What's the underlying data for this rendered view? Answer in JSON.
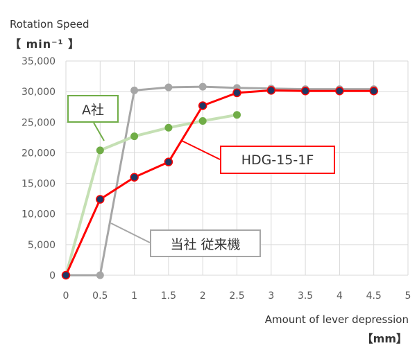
{
  "chart_data": {
    "type": "line",
    "ylabel": "Rotation Speed",
    "yunit": "【 min⁻¹ 】",
    "xlabel": "Amount of lever depression",
    "xunit": "【mm】",
    "xlim": [
      0,
      5
    ],
    "ylim": [
      0,
      35000
    ],
    "x_ticks": [
      "0",
      "0.5",
      "1",
      "1.5",
      "2",
      "2.5",
      "3",
      "3.5",
      "4",
      "4.5",
      "5"
    ],
    "y_ticks": [
      "0",
      "5,000",
      "10,000",
      "15,000",
      "20,000",
      "25,000",
      "30,000",
      "35,000"
    ],
    "grid": true,
    "series": [
      {
        "name": "当社 従来機",
        "color": "#a6a6a6",
        "marker_color": "#a6a6a6",
        "x": [
          0,
          0.5,
          1,
          1.5,
          2,
          2.5,
          3,
          3.5,
          4,
          4.5
        ],
        "y": [
          0,
          0,
          30200,
          30700,
          30800,
          30600,
          30500,
          30400,
          30400,
          30400
        ]
      },
      {
        "name": "A社",
        "color": "#c5e0b4",
        "marker_color": "#70ad47",
        "x": [
          0,
          0.5,
          1,
          1.5,
          2,
          2.5
        ],
        "y": [
          0,
          20400,
          22700,
          24100,
          25200,
          26200
        ]
      },
      {
        "name": "HDG-15-1F",
        "color": "#ff0000",
        "marker_color": "#1f3864",
        "x": [
          0,
          0.5,
          1,
          1.5,
          2,
          2.5,
          3,
          3.5,
          4,
          4.5
        ],
        "y": [
          0,
          12400,
          16000,
          18500,
          27700,
          29800,
          30200,
          30100,
          30100,
          30100
        ]
      }
    ]
  }
}
